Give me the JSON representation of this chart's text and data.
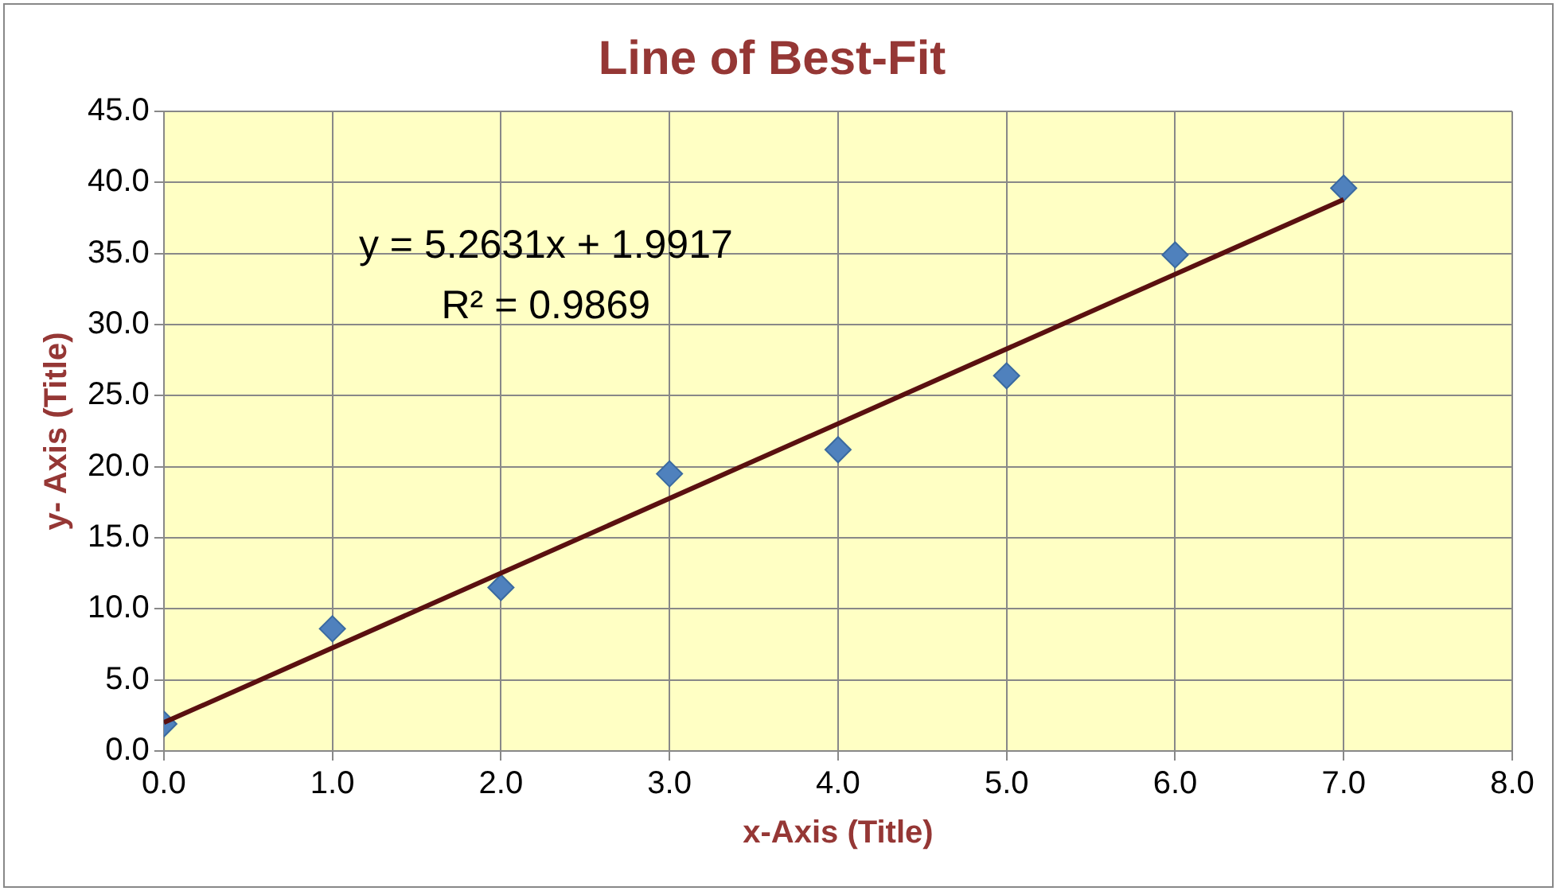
{
  "chart_data": {
    "type": "scatter",
    "title": "Line of Best-Fit",
    "xlabel": "x-Axis (Title)",
    "ylabel": "y- Axis (Title)",
    "x": [
      0,
      1,
      2,
      3,
      4,
      5,
      6,
      7
    ],
    "series": [
      {
        "color": "#4f81bd",
        "values": [
          1.9,
          8.6,
          11.5,
          19.5,
          21.2,
          26.4,
          34.9,
          39.6
        ]
      },
      {
        "type": "line",
        "color": "#5a1010",
        "x": [
          0,
          7
        ],
        "values": [
          2.0,
          38.8
        ],
        "marker": "none"
      }
    ],
    "xlim": [
      0,
      8
    ],
    "xticks": [
      {
        "value": 0,
        "label": "0.0"
      },
      {
        "value": 1,
        "label": "1.0"
      },
      {
        "value": 2,
        "label": "2.0"
      },
      {
        "value": 3,
        "label": "3.0"
      },
      {
        "value": 4,
        "label": "4.0"
      },
      {
        "value": 5,
        "label": "5.0"
      },
      {
        "value": 6,
        "label": "6.0"
      },
      {
        "value": 7,
        "label": "7.0"
      },
      {
        "value": 8,
        "label": "8.0"
      }
    ],
    "ylim": [
      0,
      45
    ],
    "yticks": [
      {
        "value": 0,
        "label": "0.0"
      },
      {
        "value": 5,
        "label": "5.0"
      },
      {
        "value": 10,
        "label": "10.0"
      },
      {
        "value": 15,
        "label": "15.0"
      },
      {
        "value": 20,
        "label": "20.0"
      },
      {
        "value": 25,
        "label": "25.0"
      },
      {
        "value": 30,
        "label": "30.0"
      },
      {
        "value": 35,
        "label": "35.0"
      },
      {
        "value": 40,
        "label": "40.0"
      },
      {
        "value": 45,
        "label": "45.0"
      }
    ],
    "annotations": [
      "y = 5.2631x + 1.9917",
      "R² = 0.9869"
    ],
    "grid": true,
    "legend": false,
    "marker": "diamond"
  }
}
